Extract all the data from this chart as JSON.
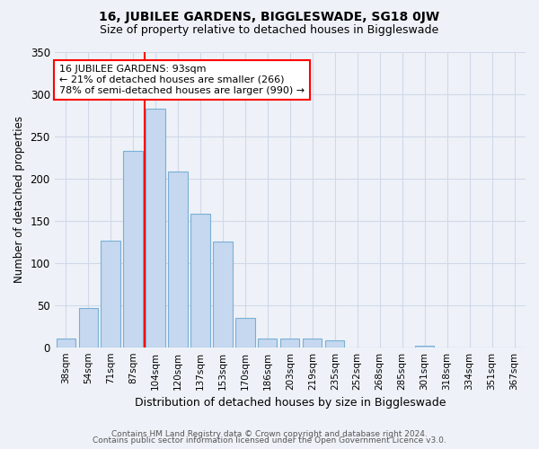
{
  "title": "16, JUBILEE GARDENS, BIGGLESWADE, SG18 0JW",
  "subtitle": "Size of property relative to detached houses in Biggleswade",
  "xlabel": "Distribution of detached houses by size in Biggleswade",
  "ylabel": "Number of detached properties",
  "categories": [
    "38sqm",
    "54sqm",
    "71sqm",
    "87sqm",
    "104sqm",
    "120sqm",
    "137sqm",
    "153sqm",
    "170sqm",
    "186sqm",
    "203sqm",
    "219sqm",
    "235sqm",
    "252sqm",
    "268sqm",
    "285sqm",
    "301sqm",
    "318sqm",
    "334sqm",
    "351sqm",
    "367sqm"
  ],
  "values": [
    10,
    46,
    126,
    233,
    283,
    208,
    158,
    125,
    35,
    10,
    10,
    10,
    8,
    0,
    0,
    0,
    2,
    0,
    0,
    0,
    0
  ],
  "bar_color": "#c5d8f0",
  "bar_edge_color": "#7aafd4",
  "grid_color": "#d0d8e8",
  "background_color": "#eef2f8",
  "vline_x": 3.5,
  "annotation_text": "16 JUBILEE GARDENS: 93sqm\n← 21% of detached houses are smaller (266)\n78% of semi-detached houses are larger (990) →",
  "annotation_box_color": "white",
  "annotation_box_edge": "red",
  "vline_color": "red",
  "footer1": "Contains HM Land Registry data © Crown copyright and database right 2024.",
  "footer2": "Contains public sector information licensed under the Open Government Licence v3.0.",
  "ylim": [
    0,
    350
  ],
  "yticks": [
    0,
    50,
    100,
    150,
    200,
    250,
    300,
    350
  ]
}
